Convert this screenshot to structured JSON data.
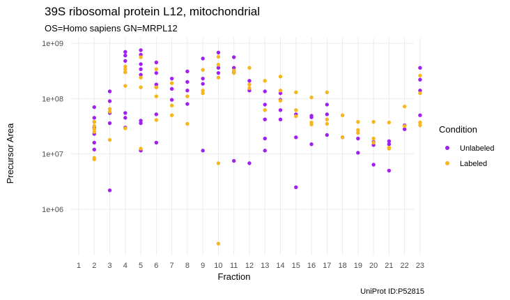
{
  "chart_data": {
    "type": "scatter",
    "title": "39S ribosomal protein L12, mitochondrial",
    "subtitle": "OS=Homo sapiens GN=MRPL12",
    "caption": "UniProt ID:P52815",
    "xlabel": "Fraction",
    "ylabel": "Precursor Area",
    "x_ticks": [
      "1",
      "2",
      "3",
      "4",
      "5",
      "6",
      "7",
      "8",
      "9",
      "10",
      "11",
      "12",
      "13",
      "14",
      "15",
      "16",
      "17",
      "18",
      "19",
      "20",
      "21",
      "22",
      "23"
    ],
    "y_scale": "log10",
    "y_ticks": [
      "1e+06",
      "1e+07",
      "1e+08",
      "1e+09"
    ],
    "ylim": [
      200000,
      1000000000
    ],
    "grid": true,
    "legend_position": "right",
    "legend_title": "Condition",
    "series": [
      {
        "name": "Unlabeled",
        "color": "#a020f0",
        "points": [
          [
            2,
            70000000
          ],
          [
            2,
            45000000
          ],
          [
            2,
            38000000
          ],
          [
            2,
            30000000
          ],
          [
            2,
            23000000
          ],
          [
            2,
            16000000
          ],
          [
            2,
            12000000
          ],
          [
            3,
            135000000
          ],
          [
            3,
            90000000
          ],
          [
            3,
            55000000
          ],
          [
            3,
            36000000
          ],
          [
            3,
            2200000
          ],
          [
            4,
            700000000
          ],
          [
            4,
            600000000
          ],
          [
            4,
            480000000
          ],
          [
            4,
            300000000
          ],
          [
            4,
            55000000
          ],
          [
            4,
            45000000
          ],
          [
            4,
            30000000
          ],
          [
            5,
            750000000
          ],
          [
            5,
            620000000
          ],
          [
            5,
            420000000
          ],
          [
            5,
            340000000
          ],
          [
            5,
            270000000
          ],
          [
            5,
            40000000
          ],
          [
            5,
            36000000
          ],
          [
            5,
            11500000
          ],
          [
            6,
            450000000
          ],
          [
            6,
            290000000
          ],
          [
            6,
            180000000
          ],
          [
            6,
            160000000
          ],
          [
            6,
            52000000
          ],
          [
            6,
            16000000
          ],
          [
            7,
            230000000
          ],
          [
            7,
            150000000
          ],
          [
            7,
            95000000
          ],
          [
            8,
            310000000
          ],
          [
            8,
            200000000
          ],
          [
            8,
            140000000
          ],
          [
            8,
            80000000
          ],
          [
            9,
            530000000
          ],
          [
            9,
            230000000
          ],
          [
            9,
            185000000
          ],
          [
            9,
            11500000
          ],
          [
            10,
            680000000
          ],
          [
            10,
            360000000
          ],
          [
            10,
            290000000
          ],
          [
            11,
            560000000
          ],
          [
            11,
            360000000
          ],
          [
            11,
            300000000
          ],
          [
            11,
            7500000
          ],
          [
            12,
            210000000
          ],
          [
            12,
            140000000
          ],
          [
            12,
            6800000
          ],
          [
            13,
            135000000
          ],
          [
            13,
            78000000
          ],
          [
            13,
            42000000
          ],
          [
            13,
            19000000
          ],
          [
            13,
            11500000
          ],
          [
            14,
            125000000
          ],
          [
            14,
            95000000
          ],
          [
            14,
            62000000
          ],
          [
            14,
            42000000
          ],
          [
            15,
            52000000
          ],
          [
            15,
            20000000
          ],
          [
            15,
            2500000
          ],
          [
            16,
            49000000
          ],
          [
            16,
            46000000
          ],
          [
            16,
            15000000
          ],
          [
            17,
            78000000
          ],
          [
            17,
            52000000
          ],
          [
            17,
            22000000
          ],
          [
            18,
            20000000
          ],
          [
            19,
            19000000
          ],
          [
            19,
            10500000
          ],
          [
            20,
            16500000
          ],
          [
            20,
            14500000
          ],
          [
            20,
            6400000
          ],
          [
            21,
            17000000
          ],
          [
            21,
            15000000
          ],
          [
            21,
            5000000
          ],
          [
            22,
            33000000
          ],
          [
            22,
            28000000
          ],
          [
            23,
            360000000
          ],
          [
            23,
            220000000
          ],
          [
            23,
            140000000
          ],
          [
            23,
            50000000
          ]
        ]
      },
      {
        "name": "Labeled",
        "color": "#f5b71d",
        "points": [
          [
            2,
            38000000
          ],
          [
            2,
            32000000
          ],
          [
            2,
            28000000
          ],
          [
            2,
            25000000
          ],
          [
            2,
            8500000
          ],
          [
            2,
            8000000
          ],
          [
            3,
            65000000
          ],
          [
            3,
            58000000
          ],
          [
            3,
            18000000
          ],
          [
            4,
            380000000
          ],
          [
            4,
            340000000
          ],
          [
            4,
            300000000
          ],
          [
            4,
            170000000
          ],
          [
            4,
            29000000
          ],
          [
            5,
            560000000
          ],
          [
            5,
            240000000
          ],
          [
            5,
            160000000
          ],
          [
            5,
            12500000
          ],
          [
            6,
            340000000
          ],
          [
            6,
            160000000
          ],
          [
            6,
            110000000
          ],
          [
            6,
            41000000
          ],
          [
            7,
            190000000
          ],
          [
            7,
            75000000
          ],
          [
            7,
            50000000
          ],
          [
            8,
            110000000
          ],
          [
            8,
            35000000
          ],
          [
            9,
            330000000
          ],
          [
            9,
            140000000
          ],
          [
            9,
            125000000
          ],
          [
            10,
            570000000
          ],
          [
            10,
            410000000
          ],
          [
            10,
            240000000
          ],
          [
            10,
            6800000
          ],
          [
            10,
            240000
          ],
          [
            11,
            320000000
          ],
          [
            11,
            290000000
          ],
          [
            12,
            360000000
          ],
          [
            12,
            180000000
          ],
          [
            12,
            155000000
          ],
          [
            13,
            210000000
          ],
          [
            13,
            62000000
          ],
          [
            14,
            250000000
          ],
          [
            14,
            140000000
          ],
          [
            14,
            92000000
          ],
          [
            15,
            130000000
          ],
          [
            15,
            62000000
          ],
          [
            15,
            48000000
          ],
          [
            16,
            105000000
          ],
          [
            16,
            37000000
          ],
          [
            16,
            34000000
          ],
          [
            17,
            130000000
          ],
          [
            17,
            42000000
          ],
          [
            17,
            35000000
          ],
          [
            18,
            50000000
          ],
          [
            18,
            20000000
          ],
          [
            19,
            38000000
          ],
          [
            19,
            27000000
          ],
          [
            19,
            24000000
          ],
          [
            20,
            38000000
          ],
          [
            20,
            19000000
          ],
          [
            20,
            16000000
          ],
          [
            21,
            37000000
          ],
          [
            21,
            13000000
          ],
          [
            21,
            12500000
          ],
          [
            22,
            72000000
          ],
          [
            22,
            32000000
          ],
          [
            23,
            260000000
          ],
          [
            23,
            125000000
          ],
          [
            23,
            37000000
          ],
          [
            23,
            33000000
          ]
        ]
      }
    ]
  }
}
